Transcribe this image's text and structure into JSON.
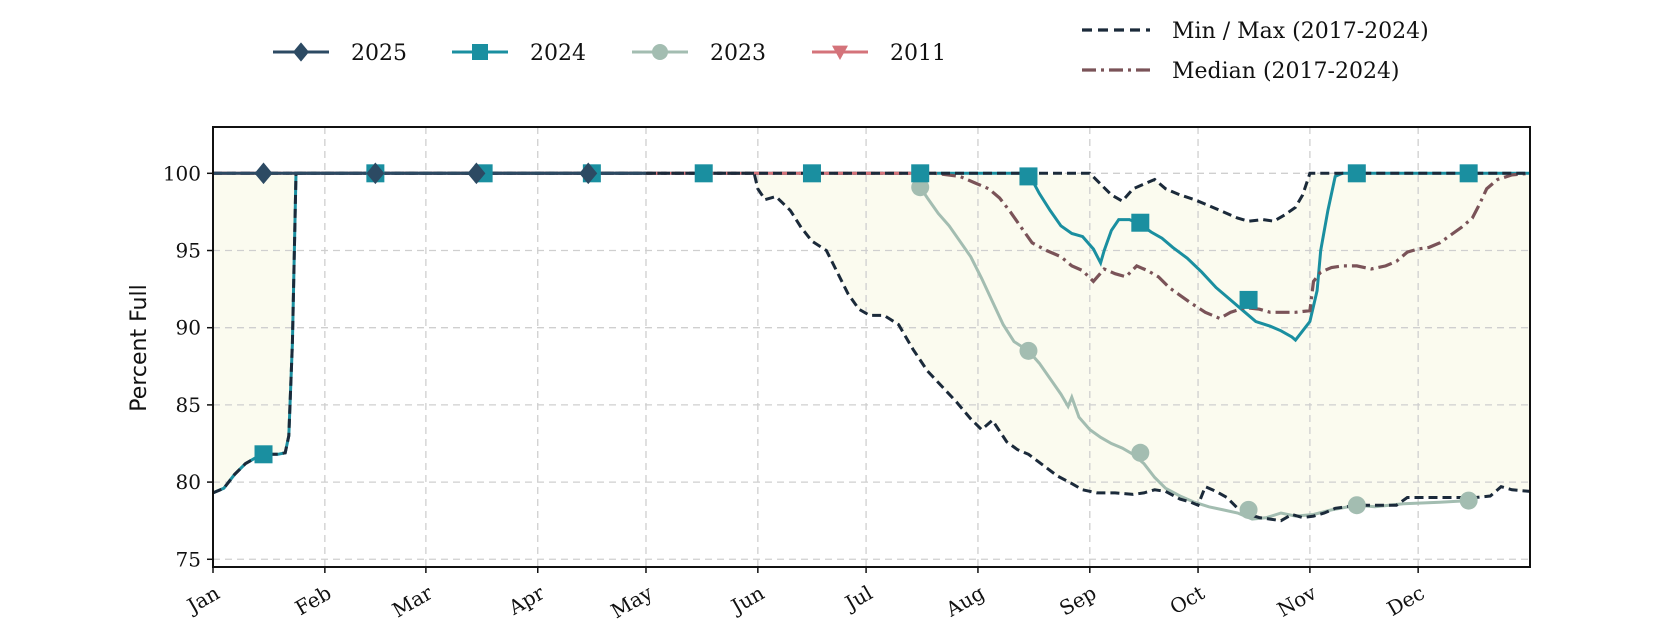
{
  "chart_data": {
    "type": "line",
    "title": "",
    "xlabel": "",
    "ylabel": "Percent Full",
    "ylim": [
      74.5,
      103
    ],
    "xlim": [
      0,
      365
    ],
    "grid": true,
    "yticks": [
      75,
      80,
      85,
      90,
      95,
      100
    ],
    "months": [
      {
        "label": "Jan",
        "day": 0
      },
      {
        "label": "Feb",
        "day": 31
      },
      {
        "label": "Mar",
        "day": 59
      },
      {
        "label": "Apr",
        "day": 90
      },
      {
        "label": "May",
        "day": 120
      },
      {
        "label": "Jun",
        "day": 151
      },
      {
        "label": "Jul",
        "day": 181
      },
      {
        "label": "Aug",
        "day": 212
      },
      {
        "label": "Sep",
        "day": 243
      },
      {
        "label": "Oct",
        "day": 273
      },
      {
        "label": "Nov",
        "day": 304
      },
      {
        "label": "Dec",
        "day": 334
      }
    ],
    "legend_placement": "top",
    "band": {
      "name": "Min / Max (2017-2024)",
      "color": "#1b2a3a",
      "fill": "#fbfbef",
      "min": [
        [
          0,
          79.3
        ],
        [
          3,
          79.6
        ],
        [
          6,
          80.5
        ],
        [
          9,
          81.2
        ],
        [
          12,
          81.6
        ],
        [
          15,
          81.8
        ],
        [
          18,
          81.8
        ],
        [
          20,
          81.9
        ],
        [
          21,
          83
        ],
        [
          22,
          89
        ],
        [
          23,
          100
        ],
        [
          60,
          100
        ],
        [
          100,
          100
        ],
        [
          130,
          100
        ],
        [
          150,
          100
        ],
        [
          151,
          99
        ],
        [
          153,
          98.3
        ],
        [
          156,
          98.5
        ],
        [
          160,
          97.6
        ],
        [
          163,
          96.5
        ],
        [
          166,
          95.6
        ],
        [
          170,
          95
        ],
        [
          173,
          93.6
        ],
        [
          176,
          92.2
        ],
        [
          179,
          91.2
        ],
        [
          182,
          90.8
        ],
        [
          186,
          90.8
        ],
        [
          190,
          90.2
        ],
        [
          194,
          88.6
        ],
        [
          198,
          87.2
        ],
        [
          202,
          86.2
        ],
        [
          206,
          85.2
        ],
        [
          210,
          84.1
        ],
        [
          213,
          83.4
        ],
        [
          216,
          84
        ],
        [
          220,
          82.6
        ],
        [
          223,
          82.1
        ],
        [
          226,
          81.8
        ],
        [
          230,
          81.1
        ],
        [
          234,
          80.4
        ],
        [
          238,
          79.9
        ],
        [
          241,
          79.5
        ],
        [
          245,
          79.3
        ],
        [
          250,
          79.3
        ],
        [
          255,
          79.2
        ],
        [
          258,
          79.3
        ],
        [
          261,
          79.5
        ],
        [
          264,
          79.4
        ],
        [
          268,
          78.9
        ],
        [
          271,
          78.7
        ],
        [
          273,
          78.5
        ],
        [
          275,
          79.7
        ],
        [
          278,
          79.4
        ],
        [
          281,
          79
        ],
        [
          284,
          78.3
        ],
        [
          287,
          77.9
        ],
        [
          290,
          77.7
        ],
        [
          293,
          77.6
        ],
        [
          296,
          77.5
        ],
        [
          299,
          77.9
        ],
        [
          302,
          77.7
        ],
        [
          305,
          77.8
        ],
        [
          308,
          78
        ],
        [
          311,
          78.3
        ],
        [
          314,
          78.4
        ],
        [
          317,
          78.5
        ],
        [
          320,
          78.5
        ],
        [
          324,
          78.5
        ],
        [
          328,
          78.5
        ],
        [
          331,
          79
        ],
        [
          334,
          79
        ],
        [
          338,
          79
        ],
        [
          342,
          79
        ],
        [
          346,
          79
        ],
        [
          350,
          79
        ],
        [
          354,
          79.1
        ],
        [
          357,
          79.7
        ],
        [
          360,
          79.5
        ],
        [
          365,
          79.4
        ]
      ],
      "max": [
        [
          0,
          100
        ],
        [
          100,
          100
        ],
        [
          200,
          100
        ],
        [
          230,
          100
        ],
        [
          243,
          100
        ],
        [
          246,
          99.3
        ],
        [
          249,
          98.6
        ],
        [
          252,
          98.2
        ],
        [
          255,
          99
        ],
        [
          258,
          99.3
        ],
        [
          261,
          99.6
        ],
        [
          264,
          99
        ],
        [
          268,
          98.6
        ],
        [
          272,
          98.3
        ],
        [
          276,
          97.9
        ],
        [
          280,
          97.5
        ],
        [
          284,
          97.1
        ],
        [
          287,
          96.9
        ],
        [
          291,
          97
        ],
        [
          294,
          96.9
        ],
        [
          297,
          97.3
        ],
        [
          300,
          97.8
        ],
        [
          302,
          98.6
        ],
        [
          304,
          100
        ],
        [
          320,
          100
        ],
        [
          365,
          100
        ]
      ]
    },
    "median": {
      "name": "Median (2017-2024)",
      "color": "#7a5358",
      "points": [
        [
          0,
          100
        ],
        [
          100,
          100
        ],
        [
          200,
          100
        ],
        [
          207,
          99.8
        ],
        [
          211,
          99.4
        ],
        [
          215,
          99
        ],
        [
          218,
          98.4
        ],
        [
          221,
          97.5
        ],
        [
          224,
          96.5
        ],
        [
          227,
          95.5
        ],
        [
          231,
          95
        ],
        [
          235,
          94.6
        ],
        [
          238,
          94
        ],
        [
          241,
          93.7
        ],
        [
          244,
          93
        ],
        [
          247,
          93.8
        ],
        [
          250,
          93.5
        ],
        [
          253,
          93.3
        ],
        [
          256,
          94
        ],
        [
          259,
          93.7
        ],
        [
          262,
          93.3
        ],
        [
          265,
          92.6
        ],
        [
          268,
          92.1
        ],
        [
          271,
          91.6
        ],
        [
          275,
          91
        ],
        [
          279,
          90.6
        ],
        [
          282,
          91
        ],
        [
          286,
          91.3
        ],
        [
          290,
          91.2
        ],
        [
          293,
          91
        ],
        [
          296,
          91
        ],
        [
          300,
          91
        ],
        [
          304,
          91.1
        ],
        [
          305,
          93
        ],
        [
          307,
          93.6
        ],
        [
          310,
          93.9
        ],
        [
          313,
          94
        ],
        [
          317,
          94
        ],
        [
          321,
          93.8
        ],
        [
          325,
          94
        ],
        [
          328,
          94.3
        ],
        [
          331,
          94.9
        ],
        [
          334,
          95.1
        ],
        [
          337,
          95.2
        ],
        [
          340,
          95.5
        ],
        [
          343,
          96
        ],
        [
          346,
          96.5
        ],
        [
          349,
          97.1
        ],
        [
          351,
          98
        ],
        [
          353,
          99
        ],
        [
          356,
          99.6
        ],
        [
          360,
          99.9
        ],
        [
          365,
          100
        ]
      ]
    },
    "series": [
      {
        "name": "2025",
        "color": "#2c4a63",
        "marker": "diamond",
        "points": [
          [
            0,
            100
          ],
          [
            120,
            100
          ]
        ],
        "markers": [
          [
            14,
            100
          ],
          [
            45,
            100
          ],
          [
            73,
            100
          ],
          [
            104,
            100
          ]
        ]
      },
      {
        "name": "2024",
        "color": "#1a8fa0",
        "marker": "square",
        "points": [
          [
            0,
            79.3
          ],
          [
            3,
            79.6
          ],
          [
            6,
            80.5
          ],
          [
            9,
            81.2
          ],
          [
            12,
            81.6
          ],
          [
            15,
            81.8
          ],
          [
            18,
            81.8
          ],
          [
            20,
            81.9
          ],
          [
            21,
            83
          ],
          [
            22,
            89
          ],
          [
            23,
            100
          ],
          [
            100,
            100
          ],
          [
            200,
            100
          ],
          [
            226,
            100
          ],
          [
            229,
            98.7
          ],
          [
            232,
            97.6
          ],
          [
            235,
            96.6
          ],
          [
            238,
            96.1
          ],
          [
            241,
            95.9
          ],
          [
            244,
            95.1
          ],
          [
            246,
            94.2
          ],
          [
            247,
            95
          ],
          [
            249,
            96.3
          ],
          [
            251,
            97
          ],
          [
            254,
            97
          ],
          [
            257,
            96.7
          ],
          [
            260,
            96.2
          ],
          [
            263,
            95.8
          ],
          [
            266,
            95.2
          ],
          [
            270,
            94.5
          ],
          [
            274,
            93.6
          ],
          [
            278,
            92.6
          ],
          [
            282,
            91.8
          ],
          [
            286,
            91
          ],
          [
            289,
            90.4
          ],
          [
            293,
            90.1
          ],
          [
            296,
            89.8
          ],
          [
            299,
            89.4
          ],
          [
            300,
            89.2
          ],
          [
            302,
            89.8
          ],
          [
            304,
            90.4
          ],
          [
            306,
            92.4
          ],
          [
            307,
            95
          ],
          [
            309,
            97.6
          ],
          [
            311,
            99.8
          ],
          [
            313,
            100
          ],
          [
            365,
            100
          ]
        ],
        "markers": [
          [
            14,
            81.8
          ],
          [
            45,
            100
          ],
          [
            75,
            100
          ],
          [
            105,
            100
          ],
          [
            136,
            100
          ],
          [
            166,
            100
          ],
          [
            196,
            100
          ],
          [
            226,
            99.8
          ],
          [
            257,
            96.8
          ],
          [
            287,
            91.8
          ],
          [
            317,
            100
          ],
          [
            348,
            100
          ]
        ]
      },
      {
        "name": "2023",
        "color": "#a3bdb1",
        "marker": "circle",
        "points": [
          [
            196,
            99.1
          ],
          [
            198,
            98.4
          ],
          [
            201,
            97.4
          ],
          [
            204,
            96.6
          ],
          [
            207,
            95.6
          ],
          [
            210,
            94.6
          ],
          [
            213,
            93.2
          ],
          [
            216,
            91.7
          ],
          [
            219,
            90.2
          ],
          [
            222,
            89.1
          ],
          [
            226,
            88.5
          ],
          [
            229,
            87.7
          ],
          [
            232,
            86.7
          ],
          [
            235,
            85.7
          ],
          [
            237,
            84.9
          ],
          [
            238,
            85.5
          ],
          [
            240,
            84.2
          ],
          [
            243,
            83.4
          ],
          [
            246,
            82.9
          ],
          [
            249,
            82.5
          ],
          [
            252,
            82.2
          ],
          [
            255,
            81.8
          ],
          [
            258,
            81.2
          ],
          [
            261,
            80.3
          ],
          [
            264,
            79.6
          ],
          [
            268,
            79.1
          ],
          [
            272,
            78.7
          ],
          [
            276,
            78.4
          ],
          [
            280,
            78.2
          ],
          [
            284,
            78
          ],
          [
            288,
            77.6
          ],
          [
            292,
            77.7
          ],
          [
            296,
            78
          ],
          [
            300,
            77.8
          ],
          [
            305,
            77.9
          ],
          [
            310,
            78.2
          ],
          [
            317,
            78.5
          ],
          [
            322,
            78.4
          ],
          [
            330,
            78.6
          ],
          [
            340,
            78.7
          ],
          [
            348,
            78.8
          ]
        ],
        "markers": [
          [
            196,
            99.1
          ],
          [
            226,
            88.5
          ],
          [
            257,
            81.9
          ],
          [
            287,
            78.2
          ],
          [
            317,
            78.5
          ],
          [
            348,
            78.8
          ]
        ]
      },
      {
        "name": "2011",
        "color": "#d4737a",
        "marker": "triangle-down",
        "points": [
          [
            0,
            100
          ],
          [
            200,
            100
          ]
        ],
        "markers": []
      }
    ]
  }
}
